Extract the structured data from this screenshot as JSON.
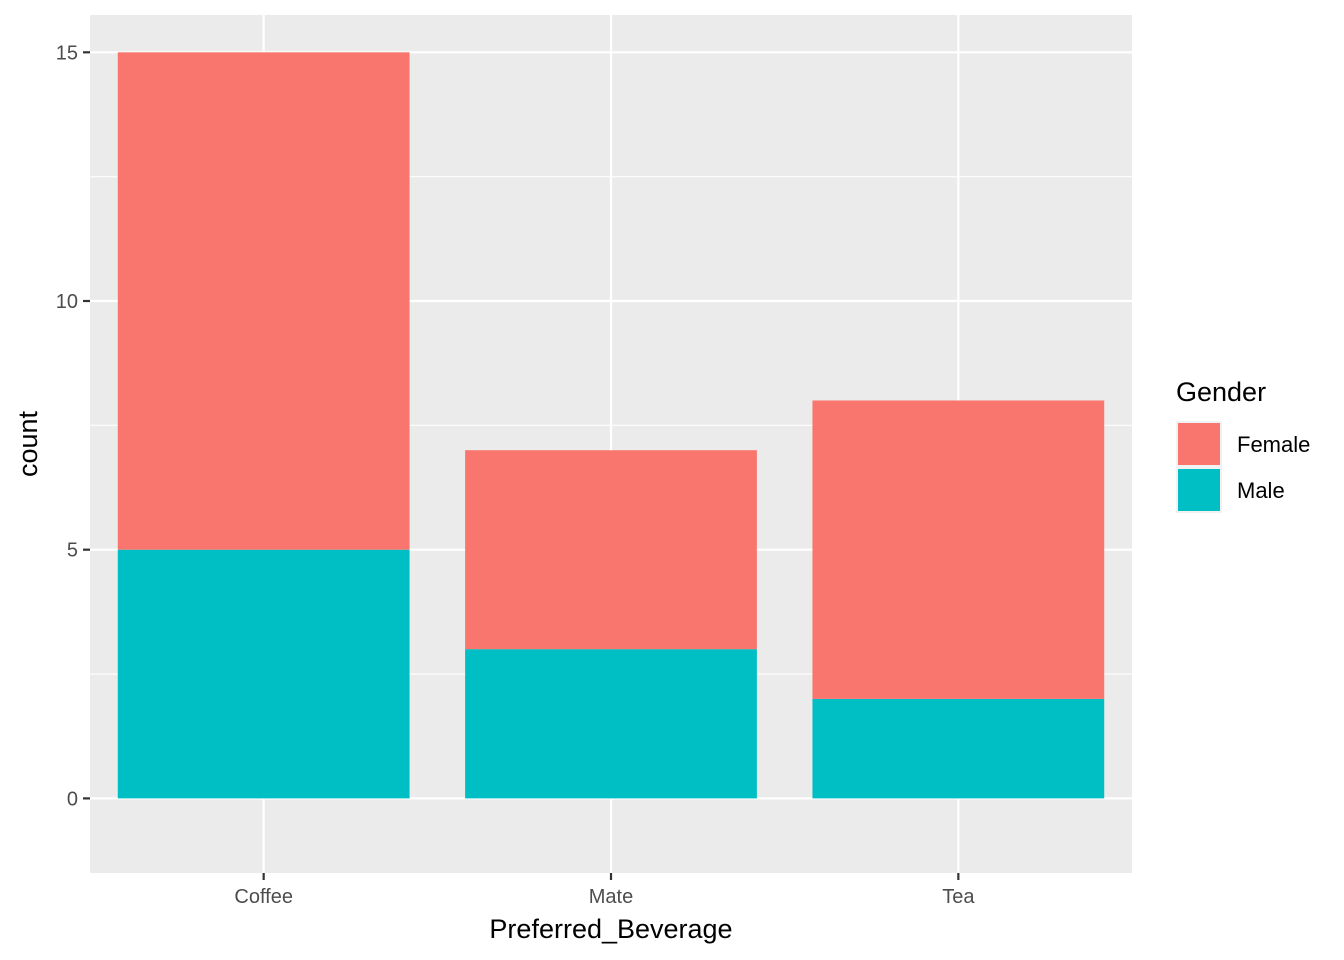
{
  "chart_data": {
    "type": "bar",
    "stacked": true,
    "xlabel": "Preferred_Beverage",
    "ylabel": "count",
    "categories": [
      "Coffee",
      "Mate",
      "Tea"
    ],
    "series": [
      {
        "name": "Female",
        "values": [
          10,
          4,
          6
        ],
        "color": "#F8766D"
      },
      {
        "name": "Male",
        "values": [
          5,
          3,
          2
        ],
        "color": "#00BFC4"
      }
    ],
    "ylim": [
      -1.5,
      15.75
    ],
    "yticks": [
      0,
      5,
      10,
      15
    ],
    "grid": true,
    "panel_background": "#EBEBEB",
    "legend": {
      "title": "Gender",
      "position": "right"
    }
  }
}
